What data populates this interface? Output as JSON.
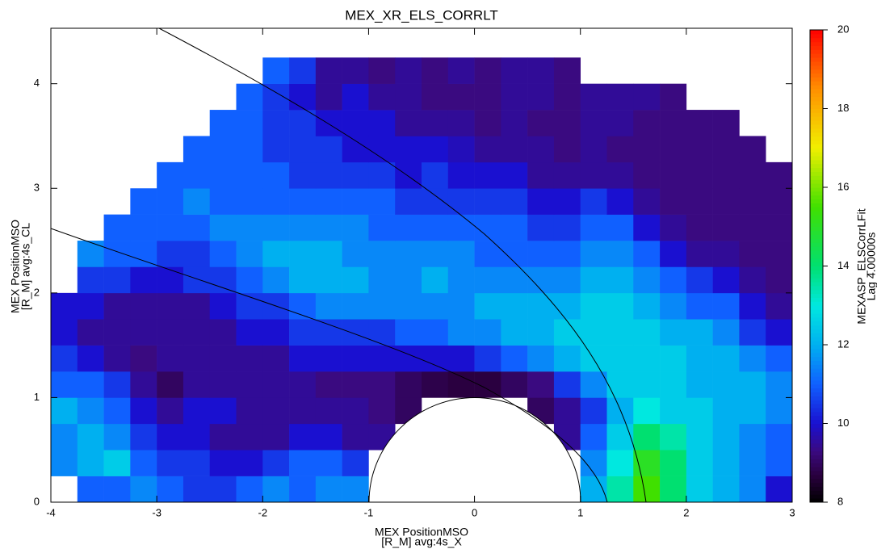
{
  "chart_data": {
    "type": "heatmap",
    "title": "MEX_XR_ELS_CORRLT",
    "x_label": [
      "MEX PositionMSO",
      "[R_M] avg:4s_X"
    ],
    "y_label": [
      "MEX PositionMSO",
      "[R_M] avg:4s_CL"
    ],
    "colorbar_label": [
      "MEXASP_ELSCorrLFit",
      "Lag 4.00000s"
    ],
    "xlim": [
      -4,
      3
    ],
    "ylim": [
      0,
      4.53
    ],
    "xticks": [
      -4,
      -3,
      -2,
      -1,
      0,
      1,
      2,
      3
    ],
    "yticks": [
      0,
      1,
      2,
      3,
      4
    ],
    "clim": [
      8,
      20
    ],
    "cticks": [
      8,
      10,
      12,
      14,
      16,
      18,
      20
    ],
    "colormap": [
      [
        8,
        "#000000"
      ],
      [
        8.7,
        "#2a0040"
      ],
      [
        9.3,
        "#3a0a80"
      ],
      [
        10,
        "#1a10d0"
      ],
      [
        11,
        "#1060ff"
      ],
      [
        12,
        "#00b0f0"
      ],
      [
        13,
        "#00e8e0"
      ],
      [
        14,
        "#00e070"
      ],
      [
        15.5,
        "#40e000"
      ],
      [
        17,
        "#f0f000"
      ],
      [
        18.5,
        "#ff9000"
      ],
      [
        20,
        "#ff0000"
      ]
    ],
    "xbins": [
      -4,
      -3.75,
      -3.5,
      -3.25,
      -3,
      -2.75,
      -2.5,
      -2.25,
      -2,
      -1.75,
      -1.5,
      -1.25,
      -1,
      -0.75,
      -0.5,
      -0.25,
      0,
      0.25,
      0.5,
      0.75,
      1,
      1.25,
      1.5,
      1.75,
      2,
      2.25,
      2.5,
      2.75,
      3
    ],
    "ybins": [
      0,
      0.25,
      0.5,
      0.75,
      1,
      1.25,
      1.5,
      1.75,
      2,
      2.25,
      2.5,
      2.75,
      3,
      3.25,
      3.5,
      3.75,
      4,
      4.25,
      4.5
    ],
    "values": [
      [
        null,
        11,
        11,
        11.5,
        11,
        10.5,
        10.5,
        11,
        11.5,
        11,
        11.5,
        11.5,
        null,
        null,
        null,
        null,
        null,
        null,
        null,
        null,
        12,
        13.5,
        15.5,
        14,
        12.5,
        12,
        11.5,
        10
      ],
      [
        11.5,
        12,
        12.5,
        11,
        10.5,
        10.5,
        10,
        10,
        10.5,
        11,
        11,
        10.5,
        null,
        null,
        null,
        null,
        null,
        null,
        null,
        null,
        11.5,
        13,
        15,
        14,
        12.5,
        12,
        11.5,
        11
      ],
      [
        11.5,
        12,
        11.5,
        10.5,
        10,
        10,
        9.5,
        9.5,
        9.5,
        10,
        10,
        9.5,
        9.5,
        null,
        null,
        null,
        null,
        null,
        null,
        9.5,
        11,
        12.5,
        14,
        13.5,
        12.5,
        12,
        11.5,
        11
      ],
      [
        12,
        11.5,
        11,
        10,
        9.5,
        10,
        10,
        9.5,
        9.5,
        9.5,
        9.5,
        9.5,
        9.3,
        9,
        null,
        null,
        null,
        null,
        9,
        9.5,
        10.5,
        12,
        13,
        12.5,
        12.5,
        12,
        12,
        11.5
      ],
      [
        11,
        11,
        10.5,
        9.5,
        9,
        9.5,
        9.5,
        9.5,
        9.5,
        9.5,
        9.3,
        9.3,
        9.3,
        9,
        8.8,
        8.7,
        8.7,
        9,
        9.3,
        10.5,
        11.5,
        12.5,
        12.5,
        12.5,
        12,
        12,
        12,
        11.5
      ],
      [
        10.5,
        10,
        9.5,
        9.3,
        9.5,
        9.5,
        9.5,
        9.5,
        9.5,
        10,
        10,
        10,
        10,
        10,
        10,
        10,
        10.5,
        11,
        11.5,
        12,
        12.5,
        12.5,
        12.5,
        12.5,
        12,
        12,
        11.5,
        11
      ],
      [
        10,
        9.5,
        9.5,
        9.5,
        9.5,
        9.5,
        9.5,
        10,
        10,
        10.5,
        10.5,
        10.5,
        10.5,
        11,
        11,
        11.5,
        11.5,
        12,
        12,
        12.5,
        12.5,
        12.5,
        12.5,
        12,
        12,
        11.5,
        10.5,
        10
      ],
      [
        10,
        10,
        9.5,
        9.5,
        9.5,
        9.5,
        10,
        10.5,
        10.5,
        11,
        11.5,
        11.5,
        11.5,
        11.5,
        11.5,
        11.5,
        12,
        12,
        12,
        12,
        12.5,
        12.5,
        12,
        11.5,
        11,
        11,
        10,
        9.5
      ],
      [
        null,
        10.5,
        10.5,
        10,
        10,
        10.5,
        10.5,
        11,
        11.5,
        12,
        12,
        12,
        11.5,
        11.5,
        12,
        11.5,
        11.5,
        11.5,
        11.5,
        11.5,
        12,
        12,
        11.5,
        11,
        10.5,
        10,
        9.5,
        9.3
      ],
      [
        null,
        11.5,
        11,
        11,
        10.5,
        10.5,
        11,
        11.5,
        12,
        12,
        12,
        11.5,
        11.5,
        11.5,
        11.5,
        11.5,
        11,
        11,
        11,
        11,
        11.5,
        11.5,
        11,
        10,
        9.5,
        9.5,
        9.3,
        9.3
      ],
      [
        null,
        null,
        11,
        11,
        11,
        11,
        11.5,
        11.5,
        11.5,
        11.5,
        11.5,
        11.5,
        11,
        11,
        11,
        11,
        11,
        11,
        10.5,
        10.5,
        11,
        11,
        10,
        9.5,
        9.3,
        9.3,
        9.3,
        9.3
      ],
      [
        null,
        null,
        null,
        11,
        11,
        11.5,
        11,
        11,
        11,
        11,
        11,
        11,
        11,
        10.5,
        10.5,
        10.5,
        10.5,
        10.5,
        10,
        10,
        10.5,
        10,
        9.5,
        9.3,
        9.3,
        9.3,
        9.3,
        9.3
      ],
      [
        null,
        null,
        null,
        null,
        11,
        11,
        11,
        11,
        11,
        10.5,
        10.5,
        10.5,
        10.5,
        10,
        10.5,
        10,
        10,
        10,
        9.5,
        9.5,
        9.5,
        9.5,
        9.3,
        9.3,
        9.3,
        9.3,
        9.3,
        9.3
      ],
      [
        null,
        null,
        null,
        null,
        null,
        11,
        11,
        11,
        10.5,
        10.5,
        10.5,
        10,
        10,
        10,
        10,
        9.8,
        9.5,
        9.5,
        9.5,
        9.3,
        9.5,
        9.3,
        9.3,
        9.3,
        9.3,
        9.3,
        9.3,
        null
      ],
      [
        null,
        null,
        null,
        null,
        null,
        null,
        11,
        11,
        10.5,
        10.5,
        10,
        10,
        10,
        9.5,
        9.5,
        9.5,
        9.3,
        9.5,
        9.3,
        9.3,
        9.5,
        9.5,
        9.3,
        9.3,
        9.3,
        9.3,
        null,
        null
      ],
      [
        null,
        null,
        null,
        null,
        null,
        null,
        null,
        11,
        10.5,
        10,
        9.5,
        10,
        9.5,
        9.5,
        9.3,
        9.3,
        9.3,
        9.5,
        9.5,
        9.3,
        9.5,
        9.5,
        9.5,
        9.3,
        null,
        null,
        null,
        null
      ],
      [
        null,
        null,
        null,
        null,
        null,
        null,
        null,
        null,
        11,
        10.5,
        9.5,
        9.5,
        9.3,
        9.5,
        9.3,
        9.5,
        9.3,
        9.5,
        9.5,
        9.3,
        null,
        null,
        null,
        null,
        null,
        null,
        null,
        null
      ],
      [
        null,
        null,
        null,
        null,
        null,
        null,
        null,
        null,
        null,
        null,
        null,
        null,
        null,
        null,
        null,
        null,
        null,
        null,
        null,
        null,
        null,
        null,
        null,
        null,
        null,
        null,
        null,
        null
      ]
    ]
  }
}
